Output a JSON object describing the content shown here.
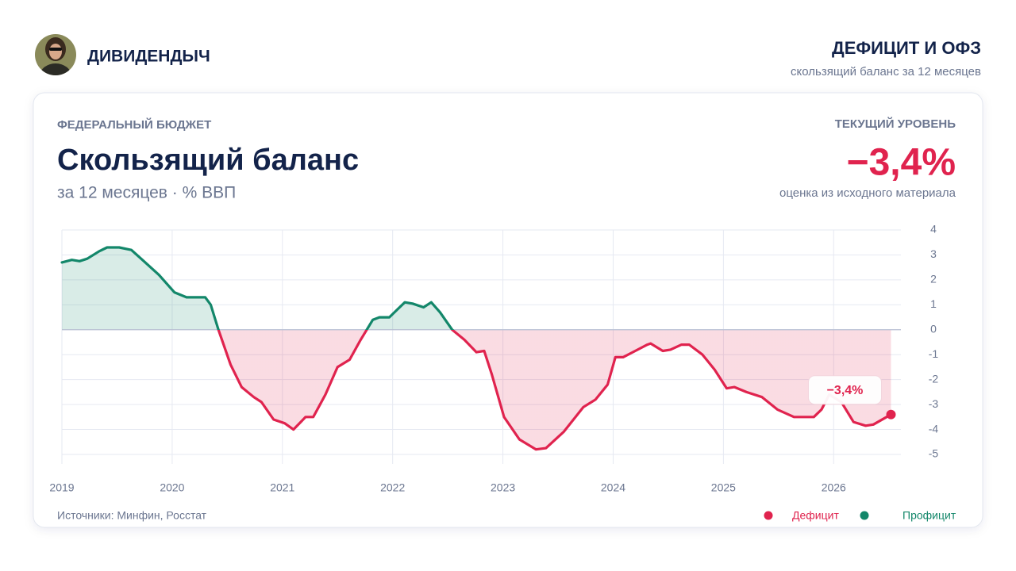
{
  "header": {
    "author": "ДИВИДЕНДЫЧ",
    "title": "ДЕФИЦИТ И ОФЗ",
    "subtitle": "скользящий баланс за 12 месяцев"
  },
  "card": {
    "kicker": "ФЕДЕРАЛЬНЫЙ БЮДЖЕТ",
    "title": "Скользящий баланс",
    "subtitle": "за 12 месяцев · % ВВП",
    "current_label": "ТЕКУЩИЙ УРОВЕНЬ",
    "current_value": {
      "value": -3.4,
      "label": "−3,4%"
    },
    "current_note": "оценка из исходного материала",
    "source": "Источники: Минфин, Росстат"
  },
  "chart_data": {
    "type": "area-line",
    "x": [
      2019.0,
      2019.09,
      2019.16,
      2019.23,
      2019.34,
      2019.41,
      2019.52,
      2019.63,
      2019.73,
      2019.88,
      2020.02,
      2020.13,
      2020.3,
      2020.35,
      2020.42,
      2020.53,
      2020.63,
      2020.74,
      2020.81,
      2020.92,
      2021.02,
      2021.1,
      2021.21,
      2021.28,
      2021.39,
      2021.5,
      2021.61,
      2021.71,
      2021.82,
      2021.88,
      2021.97,
      2022.04,
      2022.11,
      2022.18,
      2022.28,
      2022.35,
      2022.43,
      2022.54,
      2022.65,
      2022.76,
      2022.83,
      2022.9,
      2023.01,
      2023.15,
      2023.3,
      2023.39,
      2023.55,
      2023.73,
      2023.84,
      2023.95,
      2024.02,
      2024.09,
      2024.2,
      2024.31,
      2024.34,
      2024.45,
      2024.52,
      2024.62,
      2024.69,
      2024.81,
      2024.92,
      2025.03,
      2025.1,
      2025.21,
      2025.35,
      2025.49,
      2025.64,
      2025.82,
      2025.89,
      2025.96,
      2026.07,
      2026.18,
      2026.29,
      2026.36,
      2026.52
    ],
    "values": [
      2.7,
      2.8,
      2.75,
      2.85,
      3.15,
      3.3,
      3.3,
      3.2,
      2.8,
      2.2,
      1.5,
      1.3,
      1.3,
      1.0,
      0.0,
      -1.4,
      -2.3,
      -2.7,
      -2.9,
      -3.6,
      -3.75,
      -4.0,
      -3.5,
      -3.5,
      -2.6,
      -1.5,
      -1.2,
      -0.4,
      0.4,
      0.5,
      0.5,
      0.8,
      1.1,
      1.05,
      0.9,
      1.1,
      0.7,
      0.0,
      -0.4,
      -0.9,
      -0.85,
      -1.8,
      -3.5,
      -4.4,
      -4.8,
      -4.75,
      -4.1,
      -3.1,
      -2.8,
      -2.2,
      -1.1,
      -1.1,
      -0.85,
      -0.6,
      -0.55,
      -0.85,
      -0.8,
      -0.6,
      -0.6,
      -1.0,
      -1.6,
      -2.35,
      -2.3,
      -2.5,
      -2.7,
      -3.2,
      -3.5,
      -3.5,
      -3.2,
      -2.6,
      -2.9,
      -3.7,
      -3.85,
      -3.8,
      -3.4
    ],
    "xlim": [
      2019,
      2026.61
    ],
    "xticks": [
      2019,
      2020,
      2021,
      2022,
      2023,
      2024,
      2025,
      2026
    ],
    "ylim": [
      -5,
      4
    ],
    "yticks": [
      4,
      3,
      2,
      1,
      0,
      -1,
      -2,
      -3,
      -4,
      -5
    ],
    "grid": true,
    "annotation": {
      "label": "−3,4%"
    },
    "legend": [
      {
        "name": "Дефицит",
        "color": "#e0234e"
      },
      {
        "name": "Профицит",
        "color": "#13876a"
      }
    ]
  }
}
